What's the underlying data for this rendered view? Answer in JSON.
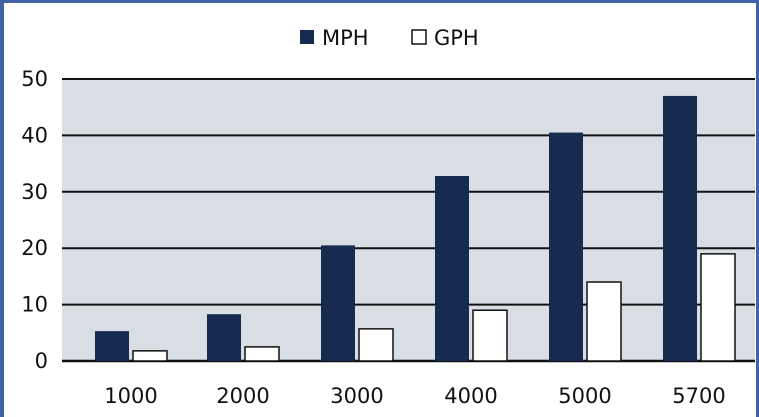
{
  "chart_data": {
    "type": "bar",
    "categories": [
      "1000",
      "2000",
      "3000",
      "4000",
      "5000",
      "5700"
    ],
    "series": [
      {
        "name": "MPH",
        "values": [
          5.3,
          8.3,
          20.5,
          32.8,
          40.5,
          47.0
        ],
        "color": "#172a4f"
      },
      {
        "name": "GPH",
        "values": [
          1.8,
          2.5,
          5.7,
          9.0,
          14.0,
          19.0
        ],
        "color": "#ffffff"
      }
    ],
    "ylim": [
      0,
      50
    ],
    "yticks": [
      "0",
      "10",
      "20",
      "30",
      "40",
      "50"
    ],
    "grid": true,
    "legend_position": "top-center",
    "plot_background": "#d9dee4",
    "xlabel": "",
    "ylabel": "",
    "title": ""
  }
}
